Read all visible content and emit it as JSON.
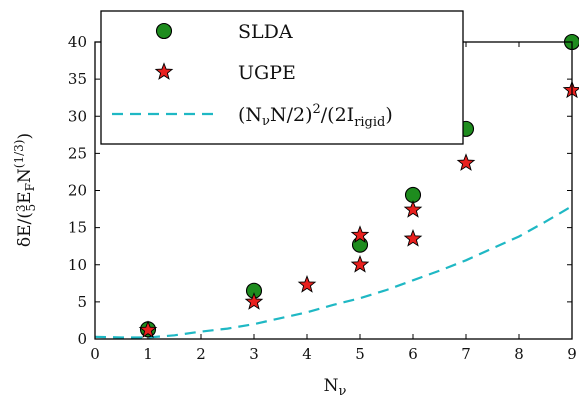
{
  "chart_data": {
    "type": "scatter",
    "xlim": [
      0,
      9
    ],
    "ylim": [
      0,
      40
    ],
    "xticks": [
      0,
      1,
      2,
      3,
      4,
      5,
      6,
      7,
      8,
      9
    ],
    "yticks": [
      0,
      5,
      10,
      15,
      20,
      25,
      30,
      35,
      40
    ],
    "xlabel": "Nν",
    "ylabel": "δE/(3/5 E_F N^(1/3))",
    "legend_position": "top-left",
    "series": [
      {
        "name": "SLDA",
        "marker": "circle",
        "color": "#1e8c1e",
        "points": [
          [
            1,
            1.3
          ],
          [
            3,
            6.5
          ],
          [
            5,
            12.7
          ],
          [
            6,
            19.4
          ],
          [
            7,
            28.3
          ],
          [
            9,
            40.0
          ]
        ]
      },
      {
        "name": "UGPE",
        "marker": "star",
        "color": "#e8201e",
        "points": [
          [
            1,
            1.2
          ],
          [
            3,
            5.0
          ],
          [
            4,
            7.3
          ],
          [
            5,
            10.0
          ],
          [
            5,
            14.0
          ],
          [
            6,
            13.5
          ],
          [
            6,
            17.4
          ],
          [
            7,
            23.7
          ],
          [
            9,
            33.5
          ]
        ]
      },
      {
        "name": "(NνN/2)²/(2I_rigid)",
        "style": "dashed-line",
        "color": "#1fb8c4",
        "points": [
          [
            0,
            0.3
          ],
          [
            0.5,
            0.2
          ],
          [
            1,
            0.2
          ],
          [
            1.5,
            0.5
          ],
          [
            2,
            1.0
          ],
          [
            2.5,
            1.4
          ],
          [
            3,
            2.0
          ],
          [
            3.5,
            2.8
          ],
          [
            4,
            3.6
          ],
          [
            4.5,
            4.6
          ],
          [
            5,
            5.5
          ],
          [
            5.5,
            6.6
          ],
          [
            6,
            7.9
          ],
          [
            6.5,
            9.2
          ],
          [
            7,
            10.6
          ],
          [
            7.5,
            12.2
          ],
          [
            8,
            13.8
          ],
          [
            8.5,
            15.8
          ],
          [
            9,
            17.9
          ]
        ]
      }
    ]
  }
}
